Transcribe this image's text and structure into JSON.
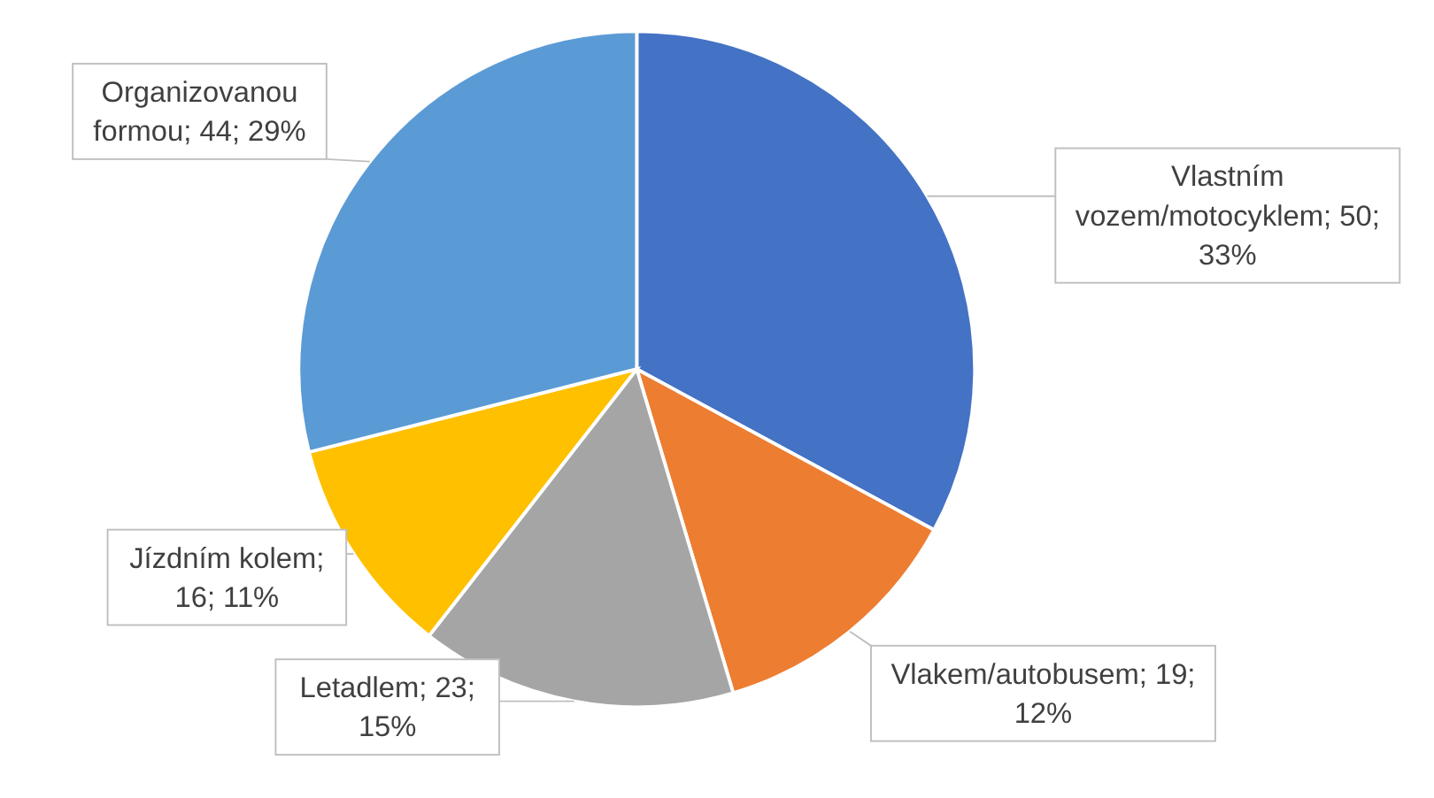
{
  "chart_data": {
    "type": "pie",
    "categories": [
      "Vlastním vozem/motocyklem",
      "Vlakem/autobusem",
      "Letadlem",
      "Jízdním kolem",
      "Organizovanou formou"
    ],
    "values": [
      50,
      19,
      23,
      16,
      44
    ],
    "value_labels": [
      "; 50; 33%",
      "; 19; 12%",
      "; 23; 15%",
      "; 16; 11%",
      "; 44; 29%"
    ],
    "colors": [
      "#4472c4",
      "#ed7d31",
      "#a5a5a5",
      "#ffc000",
      "#5b9bd5"
    ],
    "legend": false
  }
}
